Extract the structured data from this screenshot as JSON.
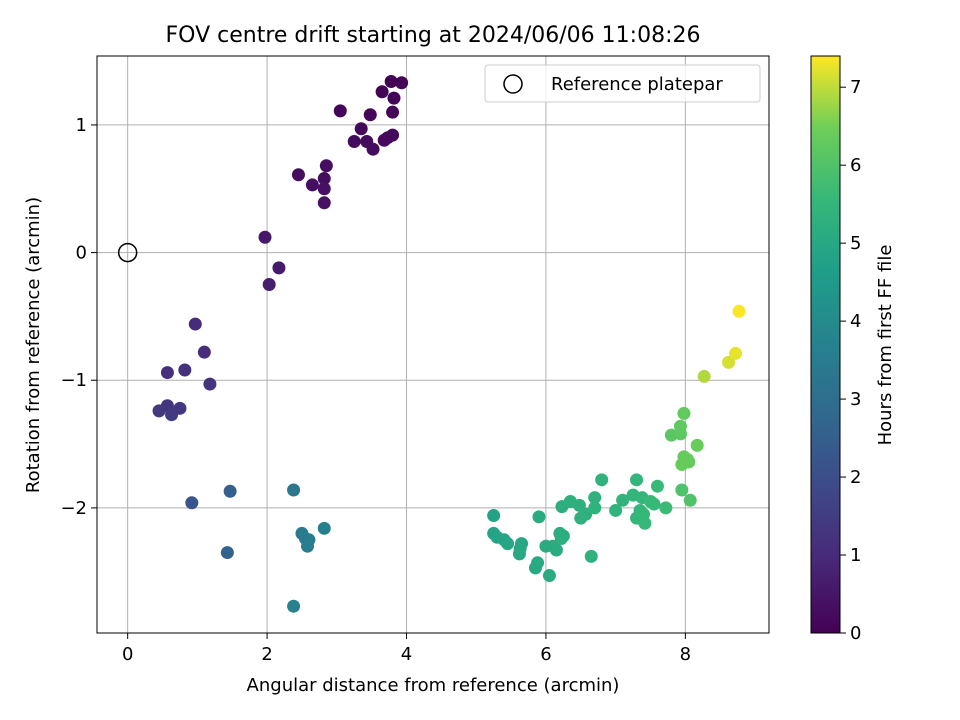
{
  "chart_data": {
    "type": "scatter",
    "title": "FOV centre drift starting at 2024/06/06 11:08:26",
    "xlabel": "Angular distance from reference (arcmin)",
    "ylabel": "Rotation from reference (arcmin)",
    "xlim": [
      -0.44,
      9.2
    ],
    "ylim": [
      -2.98,
      1.54
    ],
    "xticks": [
      0,
      2,
      4,
      6,
      8
    ],
    "yticks": [
      -2,
      -1,
      0,
      1
    ],
    "xtick_labels": [
      "0",
      "2",
      "4",
      "6",
      "8"
    ],
    "ytick_labels": [
      "−2",
      "−1",
      "0",
      "1"
    ],
    "grid": true,
    "legend": {
      "placement": "top-right",
      "entries": [
        "Reference platepar"
      ]
    },
    "reference_point": {
      "x": 0,
      "y": 0,
      "label": "Reference platepar"
    },
    "colorbar": {
      "label": "Hours from first FF file",
      "colormap": "viridis",
      "range": [
        0,
        7.4
      ],
      "ticks": [
        0,
        1,
        2,
        3,
        4,
        5,
        6,
        7
      ],
      "tick_labels": [
        "0",
        "1",
        "2",
        "3",
        "4",
        "5",
        "6",
        "7"
      ]
    },
    "series": [
      {
        "points": [
          [
            3.78,
            1.34,
            0.02
          ],
          [
            3.93,
            1.33,
            0.04
          ],
          [
            3.65,
            1.26,
            0.06
          ],
          [
            3.82,
            1.21,
            0.08
          ],
          [
            3.05,
            1.11,
            0.1
          ],
          [
            3.8,
            1.1,
            0.12
          ],
          [
            3.48,
            1.08,
            0.14
          ],
          [
            3.35,
            0.97,
            0.16
          ],
          [
            3.8,
            0.92,
            0.18
          ],
          [
            3.73,
            0.9,
            0.2
          ],
          [
            3.68,
            0.88,
            0.22
          ],
          [
            3.25,
            0.87,
            0.24
          ],
          [
            3.43,
            0.87,
            0.26
          ],
          [
            3.52,
            0.81,
            0.28
          ],
          [
            2.85,
            0.68,
            0.3
          ],
          [
            2.45,
            0.61,
            0.32
          ],
          [
            2.82,
            0.58,
            0.34
          ],
          [
            2.65,
            0.53,
            0.36
          ],
          [
            2.82,
            0.5,
            0.38
          ],
          [
            2.82,
            0.39,
            0.4
          ],
          [
            1.97,
            0.12,
            0.55
          ],
          [
            2.17,
            -0.12,
            0.62
          ],
          [
            2.03,
            -0.25,
            0.68
          ],
          [
            0.97,
            -0.56,
            1.05
          ],
          [
            1.1,
            -0.78,
            1.1
          ],
          [
            0.57,
            -0.94,
            1.15
          ],
          [
            0.82,
            -0.92,
            1.2
          ],
          [
            1.18,
            -1.03,
            1.25
          ],
          [
            0.57,
            -1.2,
            1.3
          ],
          [
            0.75,
            -1.22,
            1.35
          ],
          [
            0.45,
            -1.24,
            1.4
          ],
          [
            0.63,
            -1.27,
            1.45
          ],
          [
            0.92,
            -1.96,
            2.2
          ],
          [
            1.47,
            -1.87,
            2.5
          ],
          [
            1.43,
            -2.35,
            2.6
          ],
          [
            2.38,
            -1.86,
            3.3
          ],
          [
            2.5,
            -2.2,
            3.4
          ],
          [
            2.6,
            -2.25,
            3.45
          ],
          [
            2.55,
            -2.24,
            3.5
          ],
          [
            2.58,
            -2.3,
            3.55
          ],
          [
            2.82,
            -2.16,
            3.6
          ],
          [
            2.38,
            -2.77,
            3.65
          ],
          [
            5.25,
            -2.06,
            4.8
          ],
          [
            5.25,
            -2.2,
            4.85
          ],
          [
            5.3,
            -2.23,
            4.88
          ],
          [
            5.4,
            -2.25,
            4.9
          ],
          [
            5.45,
            -2.28,
            4.92
          ],
          [
            5.65,
            -2.28,
            4.95
          ],
          [
            5.63,
            -2.32,
            4.97
          ],
          [
            5.62,
            -2.36,
            5.0
          ],
          [
            5.88,
            -2.43,
            5.02
          ],
          [
            5.85,
            -2.47,
            5.04
          ],
          [
            6.05,
            -2.53,
            5.06
          ],
          [
            5.9,
            -2.07,
            5.08
          ],
          [
            6.0,
            -2.3,
            5.1
          ],
          [
            6.1,
            -2.3,
            5.12
          ],
          [
            6.15,
            -2.33,
            5.14
          ],
          [
            6.2,
            -2.2,
            5.16
          ],
          [
            6.25,
            -2.22,
            5.18
          ],
          [
            6.22,
            -2.24,
            5.2
          ],
          [
            6.23,
            -1.99,
            5.22
          ],
          [
            6.35,
            -1.95,
            5.24
          ],
          [
            6.48,
            -1.98,
            5.26
          ],
          [
            6.5,
            -2.08,
            5.28
          ],
          [
            6.57,
            -2.05,
            5.3
          ],
          [
            6.65,
            -2.38,
            5.32
          ],
          [
            6.7,
            -1.92,
            5.34
          ],
          [
            6.7,
            -2.0,
            5.36
          ],
          [
            6.8,
            -1.78,
            5.38
          ],
          [
            7.0,
            -2.02,
            5.4
          ],
          [
            7.1,
            -1.94,
            5.42
          ],
          [
            7.25,
            -1.9,
            5.44
          ],
          [
            7.3,
            -1.78,
            5.46
          ],
          [
            7.35,
            -2.02,
            5.48
          ],
          [
            7.3,
            -2.08,
            5.5
          ],
          [
            7.38,
            -1.92,
            5.52
          ],
          [
            7.4,
            -2.05,
            5.54
          ],
          [
            7.42,
            -2.12,
            5.56
          ],
          [
            7.5,
            -1.95,
            5.58
          ],
          [
            7.55,
            -1.97,
            5.6
          ],
          [
            7.6,
            -1.83,
            5.62
          ],
          [
            7.72,
            -2.0,
            5.64
          ],
          [
            7.95,
            -1.86,
            5.95
          ],
          [
            8.07,
            -1.94,
            6.0
          ],
          [
            7.8,
            -1.43,
            6.15
          ],
          [
            7.93,
            -1.42,
            6.2
          ],
          [
            7.93,
            -1.36,
            6.25
          ],
          [
            7.98,
            -1.26,
            6.28
          ],
          [
            7.98,
            -1.6,
            6.3
          ],
          [
            8.05,
            -1.64,
            6.32
          ],
          [
            8.03,
            -1.62,
            6.34
          ],
          [
            7.95,
            -1.66,
            6.36
          ],
          [
            8.17,
            -1.51,
            6.38
          ],
          [
            8.27,
            -0.97,
            6.9
          ],
          [
            8.62,
            -0.86,
            7.15
          ],
          [
            8.72,
            -0.79,
            7.25
          ],
          [
            8.77,
            -0.46,
            7.38
          ]
        ]
      }
    ]
  }
}
